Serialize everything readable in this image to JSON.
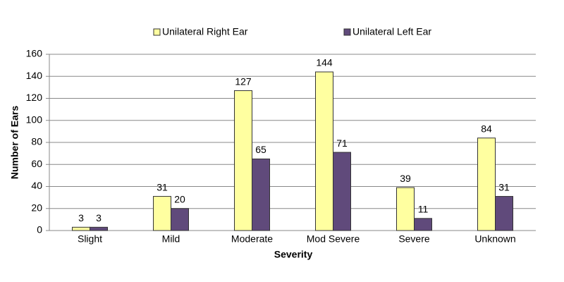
{
  "chart_data": {
    "type": "bar",
    "x_label": "Severity",
    "y_label": "Number of Ears",
    "categories": [
      "Slight",
      "Mild",
      "Moderate",
      "Mod Severe",
      "Severe",
      "Unknown"
    ],
    "series": [
      {
        "name": "Unilateral Right Ear",
        "color": "#ffffa0",
        "values": [
          3,
          31,
          127,
          144,
          39,
          84
        ]
      },
      {
        "name": "Unilateral Left Ear",
        "color": "#604a7b",
        "values": [
          3,
          20,
          65,
          71,
          11,
          31
        ]
      }
    ],
    "ylim": [
      0,
      160
    ],
    "yticks": [
      0,
      20,
      40,
      60,
      80,
      100,
      120,
      140,
      160
    ],
    "grid": true,
    "legend": "top"
  }
}
